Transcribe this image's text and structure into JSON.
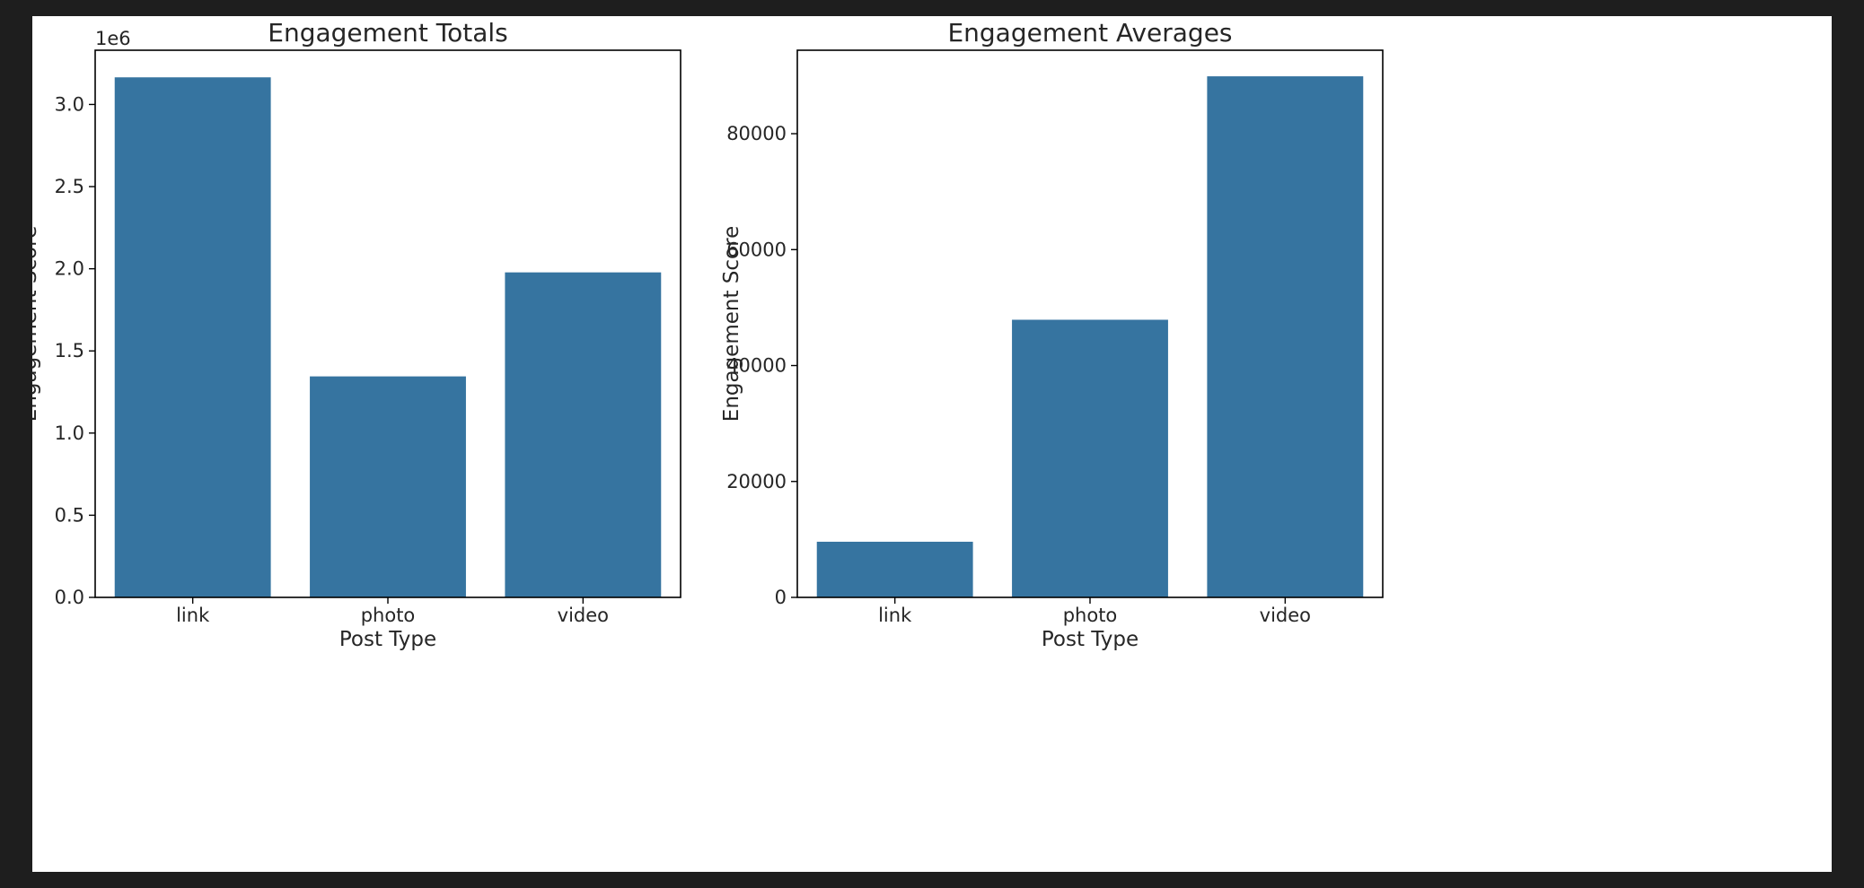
{
  "figure": {
    "background": "#1e1e1e",
    "panel_background": "#ffffff",
    "bar_color": "#3674a0"
  },
  "chart_data": [
    {
      "type": "bar",
      "title": "Engagement Totals",
      "xlabel": "Post Type",
      "ylabel": "Engagement Score",
      "categories": [
        "link",
        "photo",
        "video"
      ],
      "values": [
        3165000,
        1345000,
        1978000
      ],
      "ylim": [
        0,
        3330000
      ],
      "yticks": [
        0,
        500000,
        1000000,
        1500000,
        2000000,
        2500000,
        3000000
      ],
      "ytick_labels": [
        "0.0",
        "0.5",
        "1.0",
        "1.5",
        "2.0",
        "2.5",
        "3.0"
      ],
      "offset_text": "1e6",
      "grid": false,
      "legend": "none"
    },
    {
      "type": "bar",
      "title": "Engagement Averages",
      "xlabel": "Post Type",
      "ylabel": "Engagement Score",
      "categories": [
        "link",
        "photo",
        "video"
      ],
      "values": [
        9600,
        47900,
        89900
      ],
      "ylim": [
        0,
        94400
      ],
      "yticks": [
        0,
        20000,
        40000,
        60000,
        80000
      ],
      "ytick_labels": [
        "0",
        "20000",
        "40000",
        "60000",
        "80000"
      ],
      "offset_text": "",
      "grid": false,
      "legend": "none"
    }
  ]
}
